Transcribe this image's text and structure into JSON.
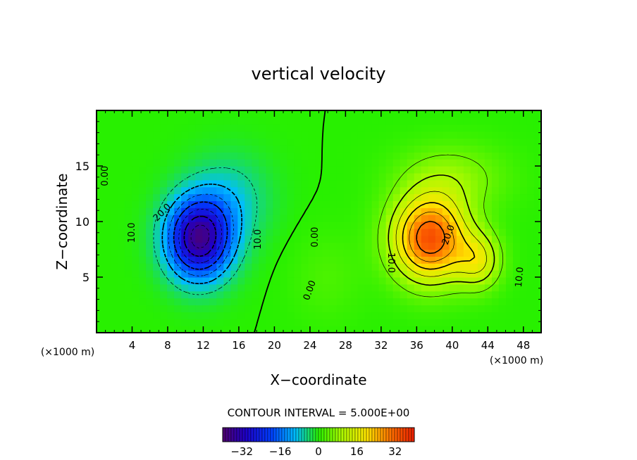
{
  "chart_data": {
    "type": "heatmap",
    "title": "vertical velocity",
    "xlabel": "X−coordinate",
    "ylabel": "Z−coordinate",
    "x_unit_left": "(×1000 m)",
    "x_unit_right": "(×1000 m)",
    "xlim": [
      0,
      50
    ],
    "ylim": [
      0,
      20
    ],
    "x_ticks": [
      4,
      8,
      12,
      16,
      20,
      24,
      28,
      32,
      36,
      40,
      44,
      48
    ],
    "y_ticks": [
      5,
      10,
      15
    ],
    "contour_interval_text": "CONTOUR INTERVAL = 5.000E+00",
    "contour_interval": 5,
    "contour_labels": [
      {
        "text": "0.00",
        "x": 1.0,
        "y": 14.1,
        "rotate": -90
      },
      {
        "text": "10.0",
        "x": 4.0,
        "y": 9.0,
        "rotate": -90
      },
      {
        "text": "20.0",
        "x": 7.4,
        "y": 10.8,
        "rotate": -45
      },
      {
        "text": "10.0",
        "x": 18.2,
        "y": 8.4,
        "rotate": -90
      },
      {
        "text": "0.00",
        "x": 24.6,
        "y": 8.6,
        "rotate": -90
      },
      {
        "text": "0.00",
        "x": 24.0,
        "y": 3.8,
        "rotate": -70
      },
      {
        "text": "10.0",
        "x": 33.1,
        "y": 6.3,
        "rotate": 90
      },
      {
        "text": "20.0",
        "x": 39.6,
        "y": 8.8,
        "rotate": -70
      },
      {
        "text": "10.0",
        "x": 47.6,
        "y": 5.0,
        "rotate": -85
      }
    ],
    "colorbar": {
      "min": -40,
      "max": 40,
      "ticks": [
        -32,
        -16,
        0,
        16,
        32
      ],
      "tick_labels": [
        "−32",
        "−16",
        "0",
        "16",
        "32"
      ]
    },
    "field_sources": [
      {
        "x": 11.5,
        "y": 8.5,
        "amp": -36,
        "sx": 3.6,
        "sy": 3.6
      },
      {
        "x": 15.0,
        "y": 12.0,
        "amp": -7,
        "sx": 4.5,
        "sy": 4.0
      },
      {
        "x": 37.5,
        "y": 8.5,
        "amp": 34,
        "sx": 4.2,
        "sy": 3.8
      },
      {
        "x": 43.0,
        "y": 6.5,
        "amp": 14,
        "sx": 2.5,
        "sy": 2.5
      },
      {
        "x": 40.0,
        "y": 14.0,
        "amp": 7,
        "sx": 6.0,
        "sy": 3.0
      },
      {
        "x": 26.0,
        "y": 5.0,
        "amp": 2.5,
        "sx": 4.0,
        "sy": 4.0
      }
    ]
  }
}
